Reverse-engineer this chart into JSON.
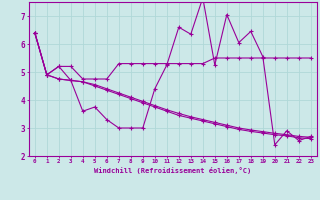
{
  "xlabel": "Windchill (Refroidissement éolien,°C)",
  "background_color": "#cce8e8",
  "line_color": "#990099",
  "grid_color": "#aadddd",
  "xlim": [
    -0.5,
    23.5
  ],
  "ylim": [
    2,
    7.5
  ],
  "yticks": [
    2,
    3,
    4,
    5,
    6,
    7
  ],
  "xticks": [
    0,
    1,
    2,
    3,
    4,
    5,
    6,
    7,
    8,
    9,
    10,
    11,
    12,
    13,
    14,
    15,
    16,
    17,
    18,
    19,
    20,
    21,
    22,
    23
  ],
  "series": {
    "line1_flat": {
      "x": [
        0,
        1,
        2,
        3,
        4,
        5,
        6,
        7,
        8,
        9,
        10,
        11,
        12,
        13,
        14,
        15,
        16,
        17,
        18,
        19,
        20,
        21,
        22,
        23
      ],
      "y": [
        6.4,
        4.9,
        5.2,
        5.2,
        4.75,
        4.75,
        4.75,
        5.3,
        5.3,
        5.3,
        5.3,
        5.3,
        5.3,
        5.3,
        5.3,
        5.5,
        5.5,
        5.5,
        5.5,
        5.5,
        5.5,
        5.5,
        5.5,
        5.5
      ]
    },
    "line2_spiky": {
      "x": [
        0,
        1,
        2,
        3,
        4,
        5,
        6,
        7,
        8,
        9,
        10,
        11,
        12,
        13,
        14,
        15,
        16,
        17,
        18,
        19,
        20,
        21,
        22,
        23
      ],
      "y": [
        6.4,
        4.9,
        5.2,
        4.7,
        3.6,
        3.75,
        3.3,
        3.0,
        3.0,
        3.0,
        4.4,
        5.25,
        6.6,
        6.35,
        7.65,
        5.25,
        7.05,
        6.05,
        6.45,
        5.55,
        2.4,
        2.9,
        2.55,
        2.7
      ]
    },
    "line3_decline": {
      "x": [
        0,
        1,
        2,
        3,
        4,
        5,
        6,
        7,
        8,
        9,
        10,
        11,
        12,
        13,
        14,
        15,
        16,
        17,
        18,
        19,
        20,
        21,
        22,
        23
      ],
      "y": [
        6.4,
        4.9,
        4.75,
        4.7,
        4.65,
        4.5,
        4.35,
        4.2,
        4.05,
        3.9,
        3.75,
        3.6,
        3.45,
        3.35,
        3.25,
        3.15,
        3.05,
        2.95,
        2.88,
        2.82,
        2.76,
        2.72,
        2.65,
        2.62
      ]
    },
    "line4_decline2": {
      "x": [
        0,
        1,
        2,
        3,
        4,
        5,
        6,
        7,
        8,
        9,
        10,
        11,
        12,
        13,
        14,
        15,
        16,
        17,
        18,
        19,
        20,
        21,
        22,
        23
      ],
      "y": [
        6.4,
        4.9,
        4.75,
        4.7,
        4.65,
        4.55,
        4.4,
        4.25,
        4.1,
        3.95,
        3.8,
        3.65,
        3.52,
        3.4,
        3.3,
        3.2,
        3.1,
        3.0,
        2.93,
        2.87,
        2.81,
        2.76,
        2.7,
        2.67
      ]
    }
  }
}
